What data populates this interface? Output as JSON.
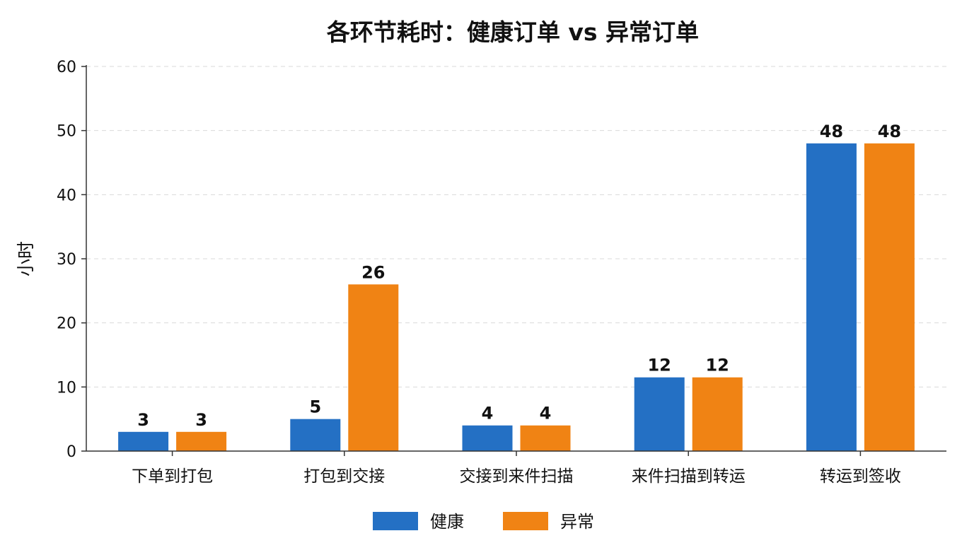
{
  "chart_data": {
    "type": "bar",
    "title": "各环节耗时：健康订单 vs 异常订单",
    "xlabel": "",
    "ylabel": "小时",
    "ylim": [
      0,
      60
    ],
    "yticks": [
      0,
      10,
      20,
      30,
      40,
      50,
      60
    ],
    "grid": "horizontal dashed",
    "legend_position": "bottom",
    "categories": [
      "下单到打包",
      "打包到交接",
      "交接到来件扫描",
      "来件扫描到转运",
      "转运到签收"
    ],
    "series": [
      {
        "name": "健康",
        "color": "#2470c4",
        "values": [
          3,
          5,
          4,
          11.5,
          48
        ],
        "labels": [
          "3",
          "5",
          "4",
          "12",
          "48"
        ]
      },
      {
        "name": "异常",
        "color": "#f08314",
        "values": [
          3,
          26,
          4,
          11.5,
          48
        ],
        "labels": [
          "3",
          "26",
          "4",
          "12",
          "48"
        ]
      }
    ]
  }
}
